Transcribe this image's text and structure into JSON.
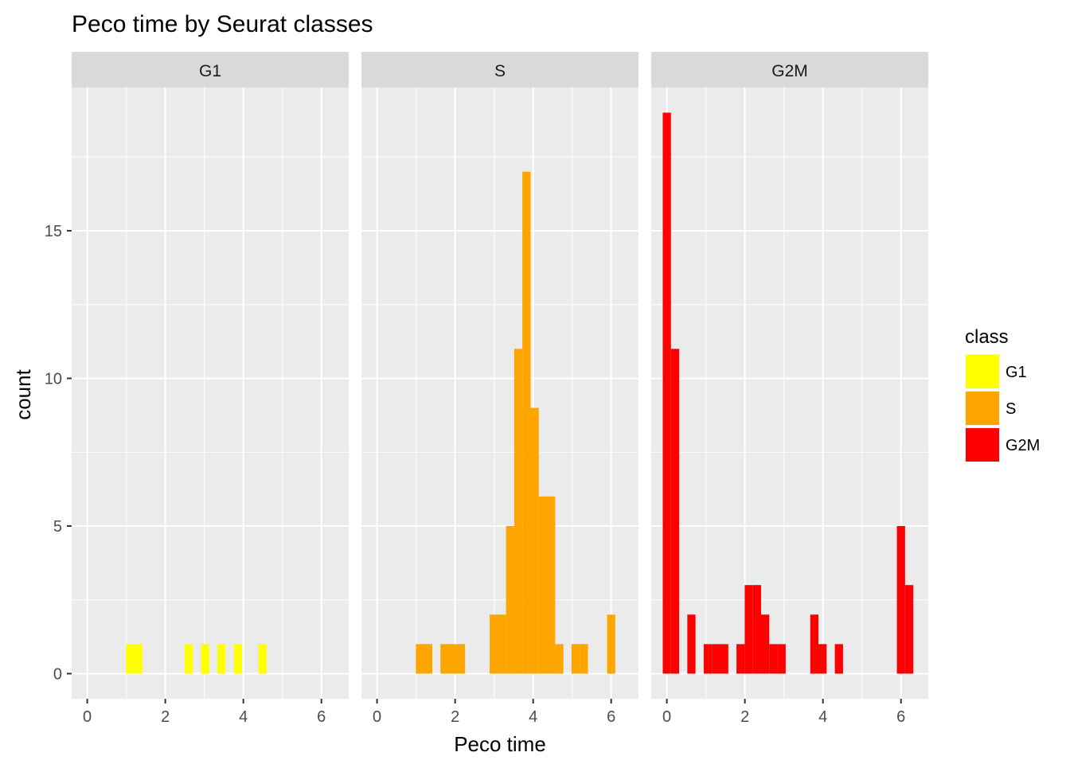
{
  "chart_data": {
    "type": "bar",
    "title": "Peco time by Seurat classes",
    "xlabel": "Peco time",
    "ylabel": "count",
    "xlim": [
      -0.4,
      6.7
    ],
    "ylim": [
      -0.85,
      19.85
    ],
    "x_ticks": [
      0,
      2,
      4,
      6
    ],
    "y_ticks": [
      0,
      5,
      10,
      15
    ],
    "x_tick_labels": [
      "0",
      "2",
      "4",
      "6"
    ],
    "y_tick_labels": [
      "0",
      "5",
      "10",
      "15"
    ],
    "bin_width": 0.21,
    "grid": true,
    "legend": {
      "title": "class",
      "position": "right",
      "entries": [
        "G1",
        "S",
        "G2M"
      ]
    },
    "colors": {
      "G1": "#FFFF00",
      "S": "#FFA500",
      "G2M": "#FF0000",
      "panel_bg": "#EBEBEB",
      "strip_bg": "#D9D9D9",
      "grid": "#FFFFFF"
    },
    "series": [
      {
        "name": "G1",
        "facet_label": "G1",
        "bins": [
          {
            "x": 1.1,
            "count": 1
          },
          {
            "x": 1.31,
            "count": 1
          },
          {
            "x": 2.6,
            "count": 1
          },
          {
            "x": 3.02,
            "count": 1
          },
          {
            "x": 3.44,
            "count": 1
          },
          {
            "x": 3.86,
            "count": 1
          },
          {
            "x": 4.49,
            "count": 1
          }
        ]
      },
      {
        "name": "S",
        "facet_label": "S",
        "bins": [
          {
            "x": 1.1,
            "count": 1
          },
          {
            "x": 1.31,
            "count": 1
          },
          {
            "x": 1.73,
            "count": 1
          },
          {
            "x": 1.94,
            "count": 1
          },
          {
            "x": 2.15,
            "count": 1
          },
          {
            "x": 2.99,
            "count": 2
          },
          {
            "x": 3.2,
            "count": 2
          },
          {
            "x": 3.41,
            "count": 5
          },
          {
            "x": 3.62,
            "count": 11
          },
          {
            "x": 3.83,
            "count": 17
          },
          {
            "x": 4.04,
            "count": 9
          },
          {
            "x": 4.25,
            "count": 6
          },
          {
            "x": 4.46,
            "count": 6
          },
          {
            "x": 4.67,
            "count": 1
          },
          {
            "x": 5.09,
            "count": 1
          },
          {
            "x": 5.3,
            "count": 1
          },
          {
            "x": 6.0,
            "count": 2
          }
        ]
      },
      {
        "name": "G2M",
        "facet_label": "G2M",
        "bins": [
          {
            "x": 0.0,
            "count": 19
          },
          {
            "x": 0.21,
            "count": 11
          },
          {
            "x": 0.63,
            "count": 2
          },
          {
            "x": 1.05,
            "count": 1
          },
          {
            "x": 1.26,
            "count": 1
          },
          {
            "x": 1.47,
            "count": 1
          },
          {
            "x": 1.89,
            "count": 1
          },
          {
            "x": 2.1,
            "count": 3
          },
          {
            "x": 2.31,
            "count": 3
          },
          {
            "x": 2.52,
            "count": 2
          },
          {
            "x": 2.73,
            "count": 1
          },
          {
            "x": 2.94,
            "count": 1
          },
          {
            "x": 3.78,
            "count": 2
          },
          {
            "x": 3.99,
            "count": 1
          },
          {
            "x": 4.41,
            "count": 1
          },
          {
            "x": 6.0,
            "count": 5
          },
          {
            "x": 6.21,
            "count": 3
          }
        ]
      }
    ]
  }
}
